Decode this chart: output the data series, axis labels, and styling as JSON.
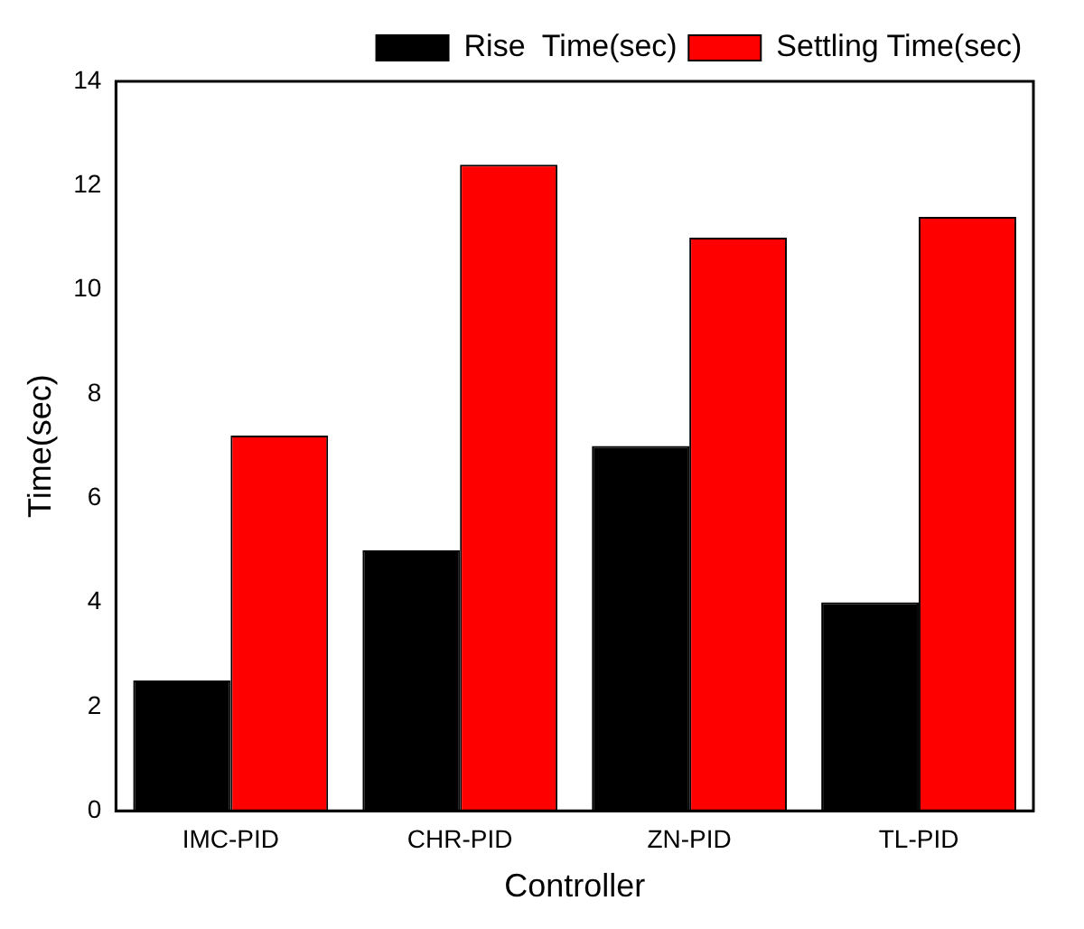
{
  "chart_data": {
    "type": "bar",
    "xlabel": "Controller",
    "ylabel": "Time(sec)",
    "categories": [
      "IMC-PID",
      "CHR-PID",
      "ZN-PID",
      "TL-PID"
    ],
    "series": [
      {
        "name": "Rise  Time(sec)",
        "color": "#000000",
        "values": [
          2.5,
          5,
          7,
          4
        ]
      },
      {
        "name": "Settling Time(sec)",
        "color": "#ff0000",
        "values": [
          7.2,
          12.4,
          11,
          11.4
        ]
      }
    ],
    "ylim": [
      0,
      14
    ],
    "yticks": [
      0,
      2,
      4,
      6,
      8,
      10,
      12,
      14
    ],
    "grid": false,
    "legend": "top right"
  }
}
